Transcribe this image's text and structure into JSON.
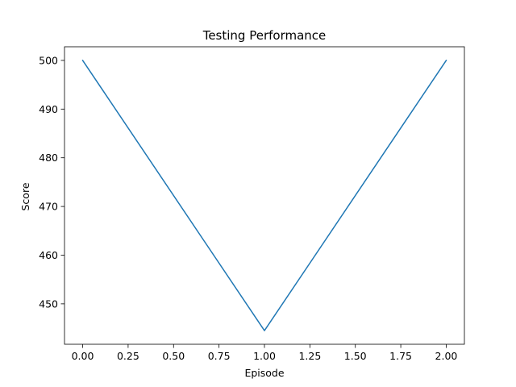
{
  "chart_data": {
    "type": "line",
    "title": "Testing Performance",
    "xlabel": "Episode",
    "ylabel": "Score",
    "x": [
      0,
      1,
      2
    ],
    "series": [
      {
        "values": [
          500,
          444.5,
          500
        ],
        "color": "#1f77b4"
      }
    ],
    "xlim": [
      -0.1,
      2.1
    ],
    "ylim": [
      441.7,
      502.8
    ],
    "xticks": [
      0.0,
      0.25,
      0.5,
      0.75,
      1.0,
      1.25,
      1.5,
      1.75,
      2.0
    ],
    "xtick_labels": [
      "0.00",
      "0.25",
      "0.50",
      "0.75",
      "1.00",
      "1.25",
      "1.50",
      "1.75",
      "2.00"
    ],
    "yticks": [
      450,
      460,
      470,
      480,
      490,
      500
    ],
    "ytick_labels": [
      "450",
      "460",
      "470",
      "480",
      "490",
      "500"
    ],
    "grid": false,
    "legend": false
  }
}
